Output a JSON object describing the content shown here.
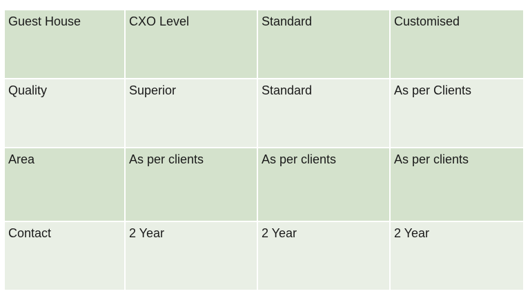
{
  "table": {
    "rows": [
      {
        "cells": [
          "Guest House",
          "CXO Level",
          "Standard",
          "Customised"
        ]
      },
      {
        "cells": [
          "Quality",
          "Superior",
          "Standard",
          "As per Clients"
        ]
      },
      {
        "cells": [
          "Area",
          "As per clients",
          "As per clients",
          "As per clients"
        ]
      },
      {
        "cells": [
          "Contact",
          "2 Year",
          "2 Year",
          "2 Year"
        ]
      }
    ]
  },
  "colors": {
    "row_dark": "#d4e2cc",
    "row_light": "#e9efe5",
    "text": "#1a1a1a"
  }
}
